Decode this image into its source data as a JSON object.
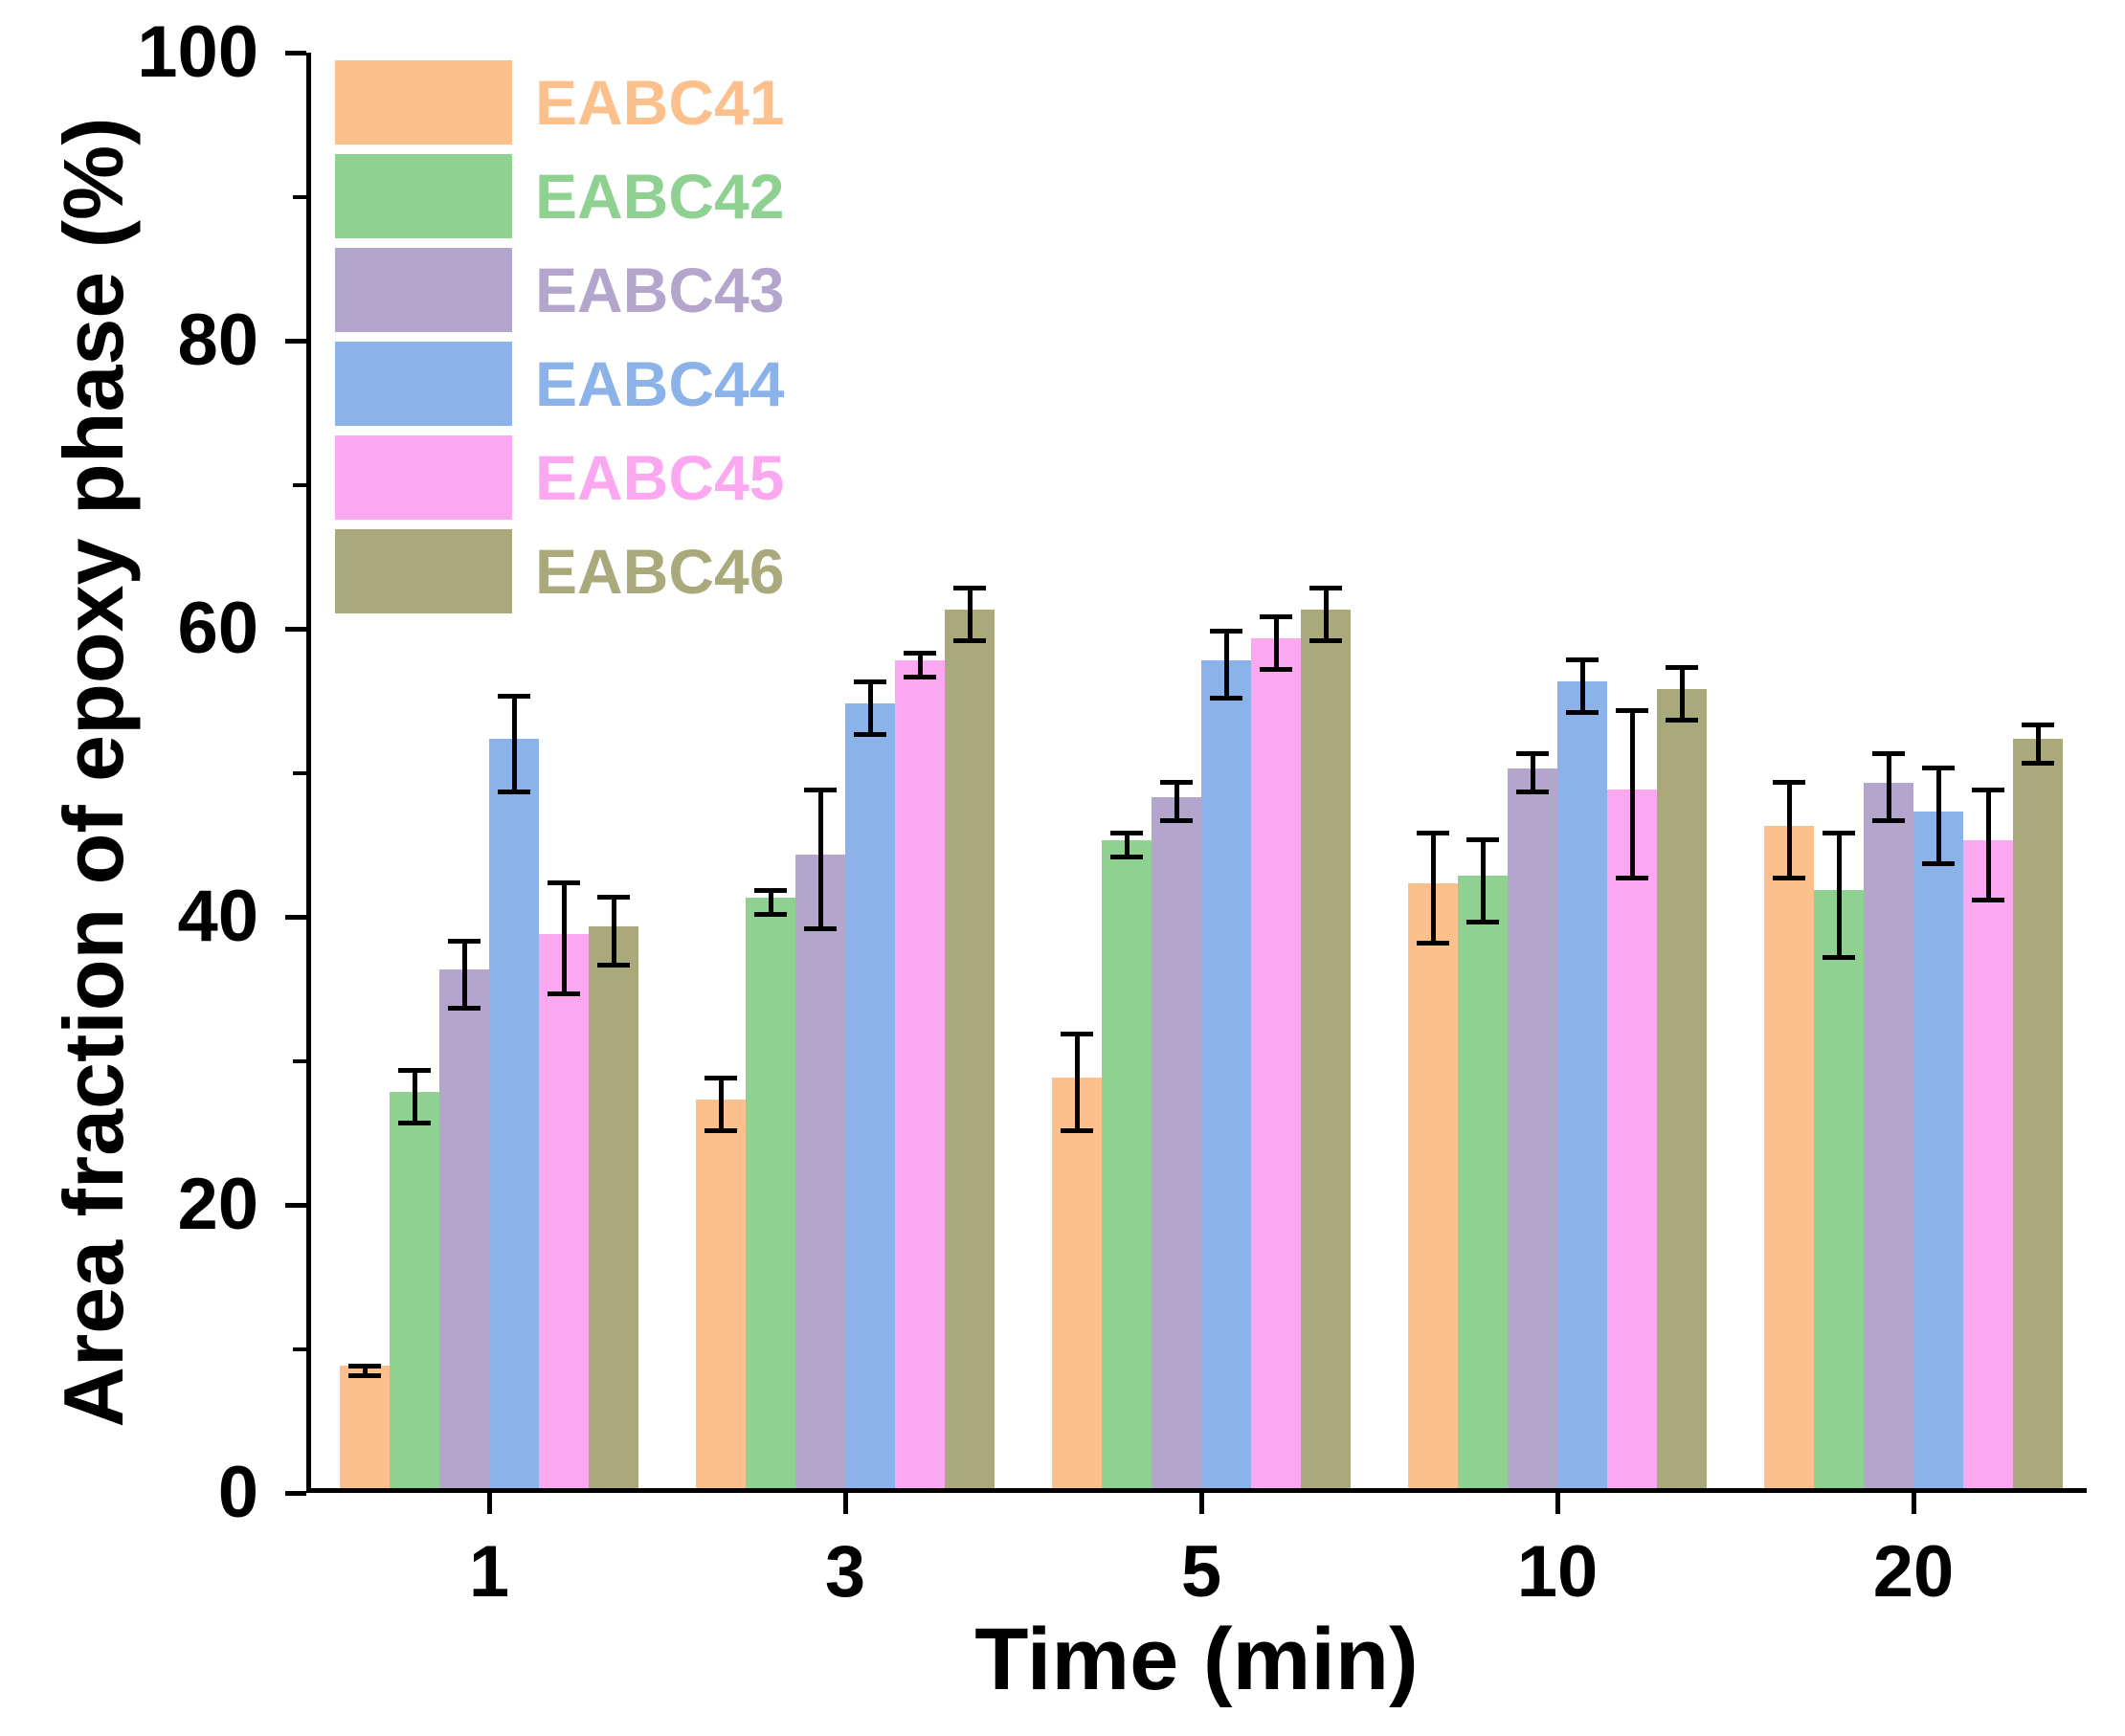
{
  "chart_data": {
    "type": "bar",
    "title": "",
    "xlabel": "Time (min)",
    "ylabel": "Area fraction of epoxy phase (%)",
    "ylim": [
      0,
      100
    ],
    "y_major_ticks": [
      0,
      20,
      40,
      60,
      80,
      100
    ],
    "y_minor_step": 10,
    "grid": false,
    "legend_position": "top-left",
    "error_bars": true,
    "axis_color": "#000000",
    "categories": [
      "1",
      "3",
      "5",
      "10",
      "20"
    ],
    "series": [
      {
        "name": "EABC41",
        "color": "#FBC08B",
        "values": [
          8.5,
          27,
          28.5,
          42,
          46
        ],
        "errors": [
          0.5,
          2,
          3.5,
          4,
          3.5
        ]
      },
      {
        "name": "EABC42",
        "color": "#8FD191",
        "values": [
          27.5,
          41,
          45,
          42.5,
          41.5
        ],
        "errors": [
          2,
          1,
          1,
          3,
          4.5
        ]
      },
      {
        "name": "EABC43",
        "color": "#B3A5CB",
        "values": [
          36,
          44,
          48,
          50,
          49
        ],
        "errors": [
          2.5,
          5,
          1.5,
          1.5,
          2.5
        ]
      },
      {
        "name": "EABC44",
        "color": "#8BB2E9",
        "values": [
          52,
          54.5,
          57.5,
          56,
          47
        ],
        "errors": [
          3.5,
          2,
          2.5,
          2,
          3.5
        ]
      },
      {
        "name": "EABC45",
        "color": "#FBA8F0",
        "values": [
          38.5,
          57.5,
          59,
          48.5,
          45
        ],
        "errors": [
          4,
          1,
          2,
          6,
          4
        ]
      },
      {
        "name": "EABC46",
        "color": "#A9A97C",
        "values": [
          39,
          61,
          61,
          55.5,
          52
        ],
        "errors": [
          2.5,
          2,
          2,
          2,
          1.5
        ]
      }
    ]
  }
}
